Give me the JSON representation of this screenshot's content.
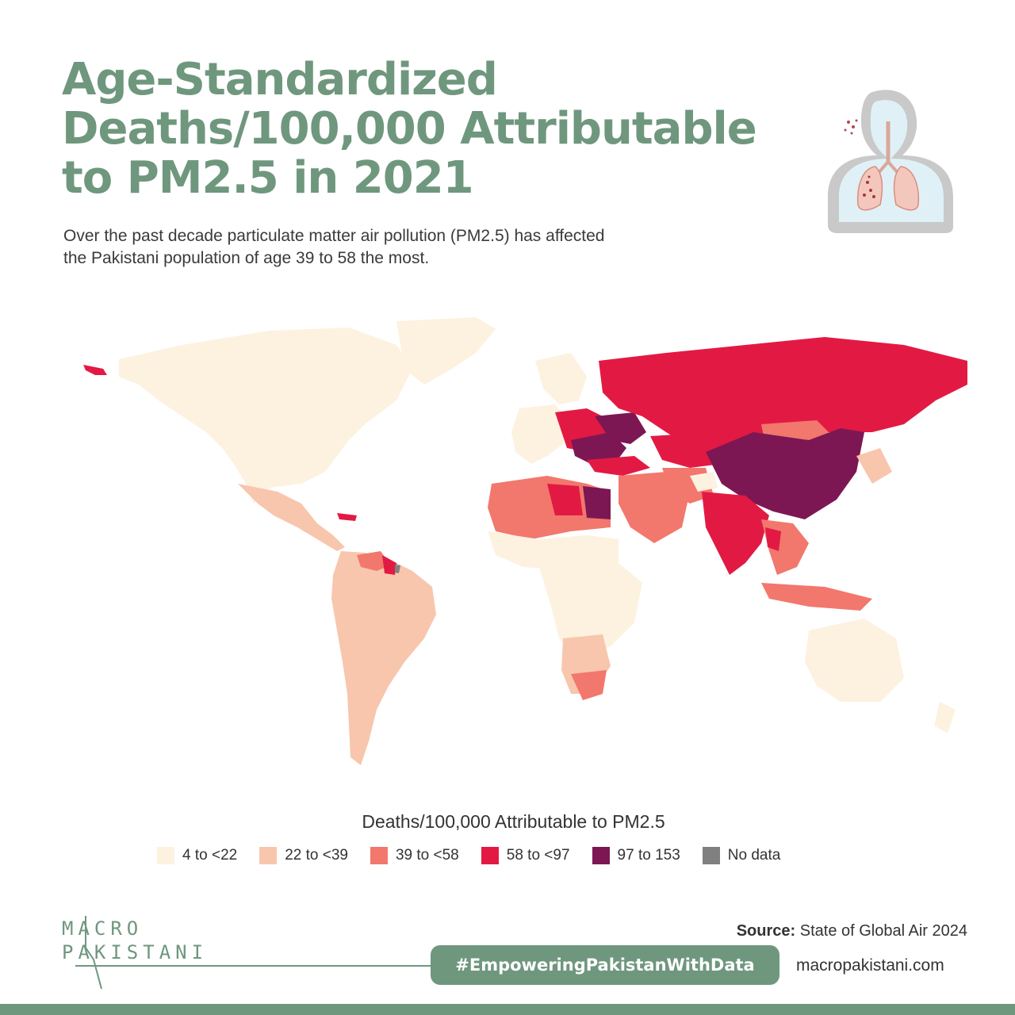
{
  "header": {
    "title_lines": [
      "Age-Standardized",
      "Deaths/100,000 Attributable",
      "to PM2.5 in 2021"
    ],
    "subtitle_lines": [
      "Over the past decade particulate matter air pollution (PM2.5) has affected",
      "the Pakistani population of age 39 to 58 the most."
    ]
  },
  "icon": "lungs-icon",
  "legend": {
    "title": "Deaths/100,000 Attributable to PM2.5",
    "items": [
      {
        "label": "4 to <22",
        "color": "#fdf1e0"
      },
      {
        "label": "22 to <39",
        "color": "#f8c6ad"
      },
      {
        "label": "39 to <58",
        "color": "#f2776d"
      },
      {
        "label": "58 to <97",
        "color": "#e21a43"
      },
      {
        "label": "97 to 153",
        "color": "#7d1753"
      },
      {
        "label": "No data",
        "color": "#808080"
      }
    ]
  },
  "footer": {
    "logo_line1": "MACRO",
    "logo_line2": "PAKISTANI",
    "source_label": "Source:",
    "source_text": "State of Global Air 2024",
    "hashtag": "#EmpoweringPakistanWithData",
    "website": "macropakistani.com"
  },
  "colors": {
    "brand_green": "#6f977e"
  }
}
